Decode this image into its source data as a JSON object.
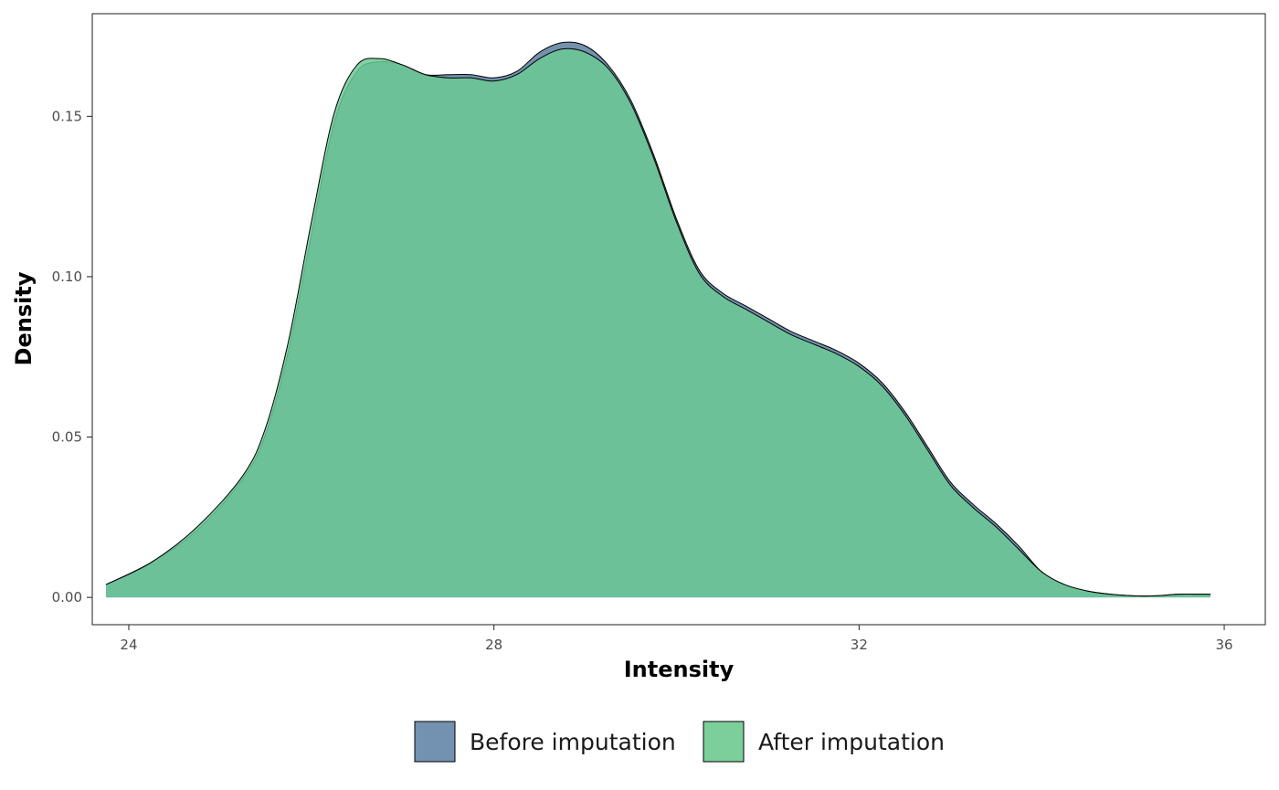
{
  "chart_data": {
    "type": "area",
    "subtype": "density",
    "xlabel": "Intensity",
    "ylabel": "Density",
    "xlim": [
      23.6,
      36.45
    ],
    "ylim": [
      -0.0085,
      0.182
    ],
    "x_ticks": [
      24,
      28,
      32,
      36
    ],
    "x_tick_labels": [
      "24",
      "28",
      "32",
      "36"
    ],
    "y_ticks": [
      0.0,
      0.05,
      0.1,
      0.15
    ],
    "y_tick_labels": [
      "0.00",
      "0.05",
      "0.10",
      "0.15"
    ],
    "grid": false,
    "legend_position": "bottom",
    "series": [
      {
        "name": "Before imputation",
        "color": "#5d7ea0",
        "x": [
          23.75,
          24.25,
          24.75,
          25.25,
          25.5,
          25.75,
          26.0,
          26.25,
          26.5,
          26.75,
          27.0,
          27.25,
          27.5,
          27.75,
          28.0,
          28.25,
          28.5,
          28.75,
          29.0,
          29.25,
          29.5,
          29.75,
          30.0,
          30.25,
          30.5,
          30.75,
          31.0,
          31.25,
          31.5,
          31.75,
          32.0,
          32.25,
          32.5,
          32.75,
          33.0,
          33.25,
          33.5,
          33.75,
          34.0,
          34.25,
          34.5,
          34.75,
          35.0,
          35.25,
          35.5,
          35.75,
          35.85
        ],
        "y": [
          0.004,
          0.011,
          0.021,
          0.037,
          0.051,
          0.077,
          0.113,
          0.148,
          0.164,
          0.167,
          0.166,
          0.163,
          0.163,
          0.163,
          0.162,
          0.164,
          0.17,
          0.173,
          0.172,
          0.166,
          0.155,
          0.138,
          0.118,
          0.102,
          0.095,
          0.091,
          0.087,
          0.083,
          0.08,
          0.077,
          0.073,
          0.067,
          0.058,
          0.047,
          0.036,
          0.029,
          0.023,
          0.016,
          0.008,
          0.004,
          0.002,
          0.001,
          0.0005,
          0.0005,
          0.001,
          0.001,
          0.001
        ]
      },
      {
        "name": "After imputation",
        "color": "#6cc995",
        "x": [
          23.75,
          24.25,
          24.75,
          25.25,
          25.5,
          25.75,
          26.0,
          26.25,
          26.5,
          26.75,
          27.0,
          27.25,
          27.5,
          27.75,
          28.0,
          28.25,
          28.5,
          28.75,
          29.0,
          29.25,
          29.5,
          29.75,
          30.0,
          30.25,
          30.5,
          30.75,
          31.0,
          31.25,
          31.5,
          31.75,
          32.0,
          32.25,
          32.5,
          32.75,
          33.0,
          33.25,
          33.5,
          33.75,
          34.0,
          34.25,
          34.5,
          34.75,
          35.0,
          35.25,
          35.5,
          35.75,
          35.85
        ],
        "y": [
          0.004,
          0.011,
          0.022,
          0.038,
          0.053,
          0.08,
          0.117,
          0.151,
          0.166,
          0.168,
          0.166,
          0.163,
          0.162,
          0.162,
          0.161,
          0.163,
          0.168,
          0.171,
          0.17,
          0.165,
          0.154,
          0.137,
          0.117,
          0.101,
          0.094,
          0.09,
          0.086,
          0.082,
          0.079,
          0.076,
          0.072,
          0.066,
          0.057,
          0.046,
          0.035,
          0.028,
          0.022,
          0.015,
          0.008,
          0.004,
          0.002,
          0.001,
          0.0005,
          0.0005,
          0.001,
          0.001,
          0.001
        ]
      }
    ]
  }
}
